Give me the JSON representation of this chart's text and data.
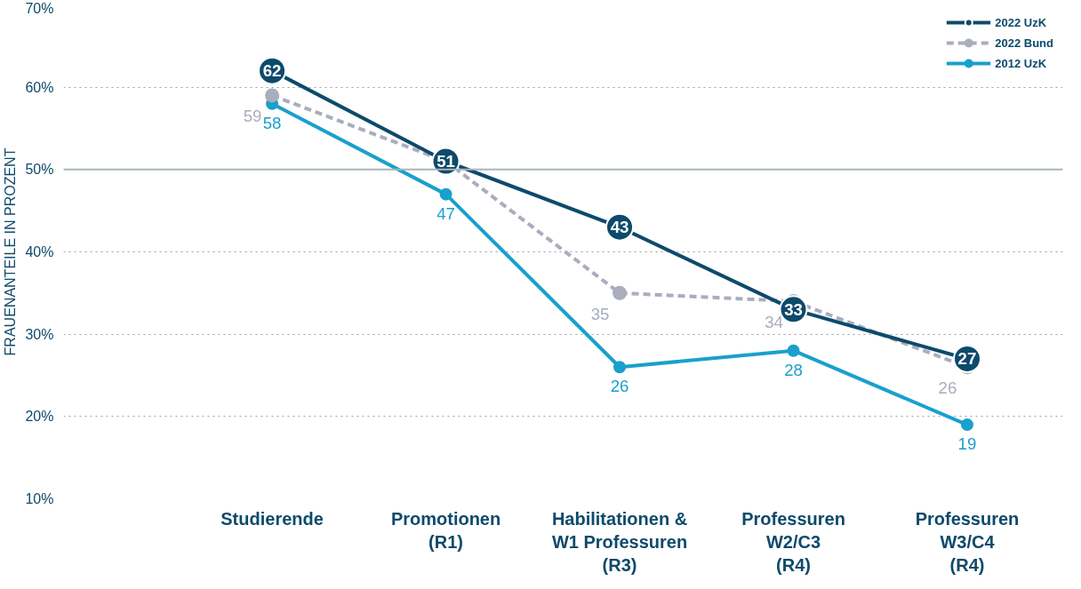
{
  "chart_data": {
    "type": "line",
    "ylabel": "FRAUENANTEILE IN PROZENT",
    "categories": [
      "Studierende",
      "Promotionen\n(R1)",
      "Habilitationen &\nW1 Professuren\n(R3)",
      "Professuren\nW2/C3\n(R4)",
      "Professuren\nW3/C4\n(R4)"
    ],
    "series": [
      {
        "name": "2022 UzK",
        "color": "#0d4a6b",
        "values": [
          62,
          51,
          43,
          33,
          27
        ],
        "value_labels": [
          "62",
          "51",
          "43",
          "33",
          "27"
        ],
        "line_style": "solid"
      },
      {
        "name": "2022 Bund",
        "color": "#a9adbd",
        "values": [
          59,
          51,
          35,
          34,
          26
        ],
        "value_labels": [
          "59",
          null,
          "35",
          "34",
          "26"
        ],
        "line_style": "dashed"
      },
      {
        "name": "2012 UzK",
        "color": "#1aa0cc",
        "values": [
          58,
          47,
          26,
          28,
          19
        ],
        "value_labels": [
          "58",
          "47",
          "26",
          "28",
          "19"
        ],
        "line_style": "solid"
      }
    ],
    "ylim": [
      10,
      70
    ],
    "yticks": [
      {
        "value": 10,
        "label": "10%"
      },
      {
        "value": 20,
        "label": "20%"
      },
      {
        "value": 30,
        "label": "30%"
      },
      {
        "value": 40,
        "label": "40%"
      },
      {
        "value": 50,
        "label": "50%"
      },
      {
        "value": 60,
        "label": "60%"
      },
      {
        "value": 70,
        "label": "70%"
      }
    ],
    "ref_lines": [
      {
        "axis": "y",
        "value": 50,
        "color": "#a8b4bc"
      }
    ],
    "grid": "y",
    "legend": "top right",
    "marker": "circle"
  }
}
